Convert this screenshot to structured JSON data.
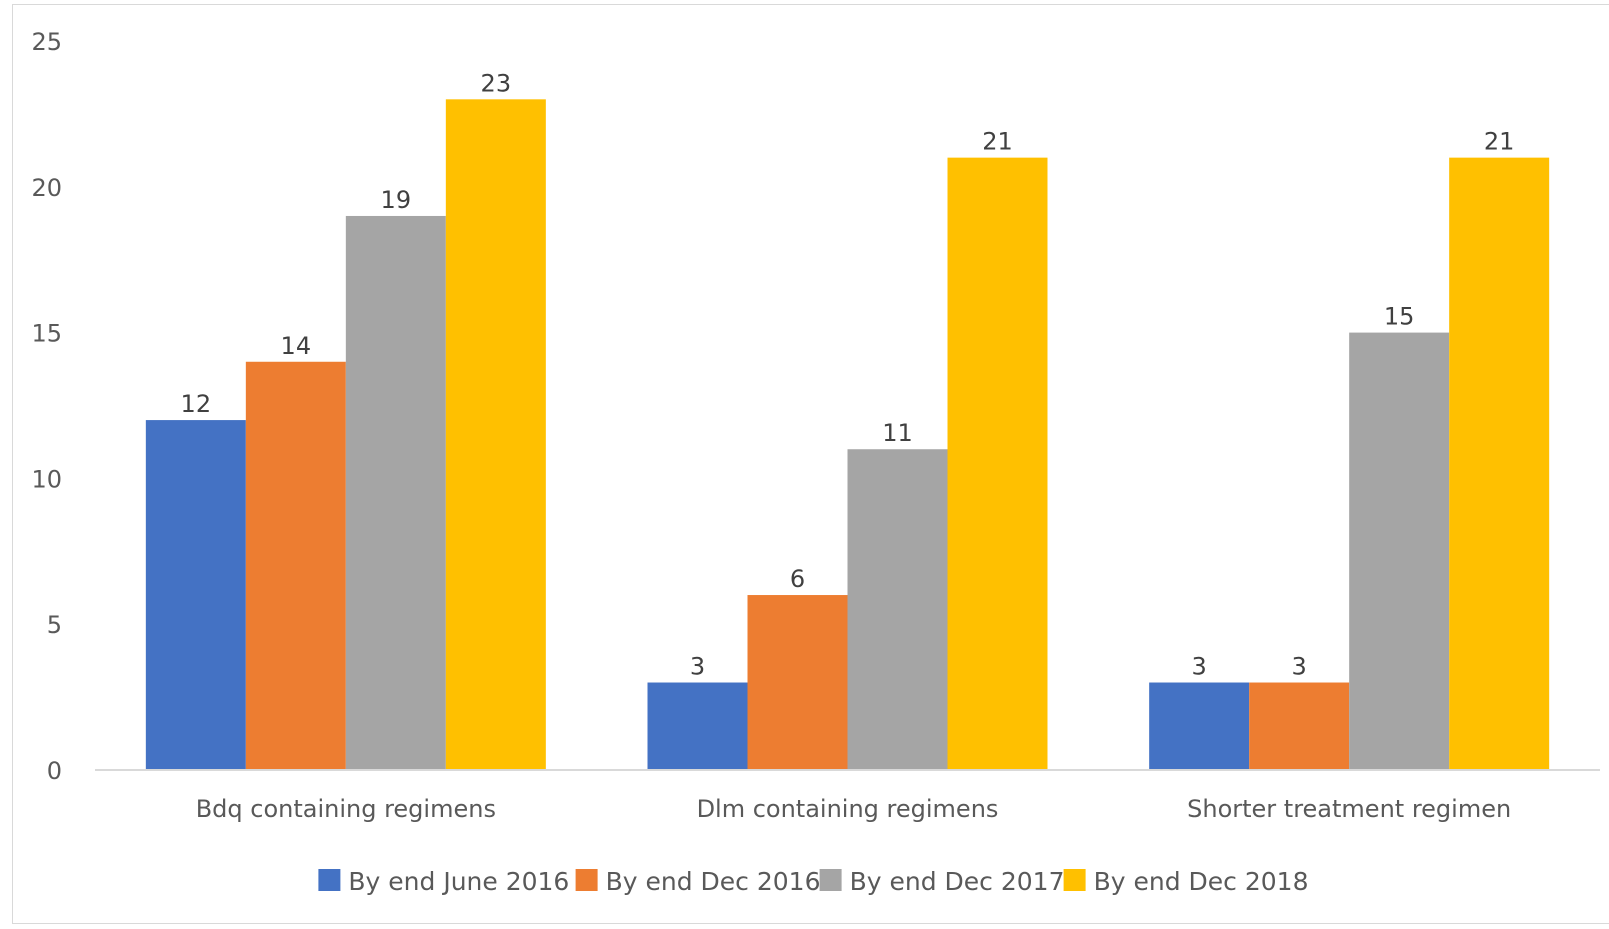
{
  "chart_data": {
    "type": "bar",
    "title": "",
    "xlabel": "",
    "ylabel": "",
    "categories": [
      "Bdq containing regimens",
      "Dlm containing regimens",
      "Shorter treatment regimen"
    ],
    "series": [
      {
        "name": "By end June 2016",
        "color": "#4472C4",
        "values": [
          12,
          3,
          3
        ]
      },
      {
        "name": "By end Dec 2016",
        "color": "#ED7D31",
        "values": [
          14,
          6,
          3
        ]
      },
      {
        "name": "By end Dec 2017",
        "color": "#A5A5A5",
        "values": [
          19,
          11,
          15
        ]
      },
      {
        "name": "By end Dec 2018",
        "color": "#FFC000",
        "values": [
          23,
          21,
          21
        ]
      }
    ],
    "yticks": [
      "0",
      "5",
      "10",
      "15",
      "20",
      "25"
    ],
    "ylim": [
      0,
      25
    ],
    "grid": false,
    "legend_position": "bottom",
    "data_labels": true
  }
}
